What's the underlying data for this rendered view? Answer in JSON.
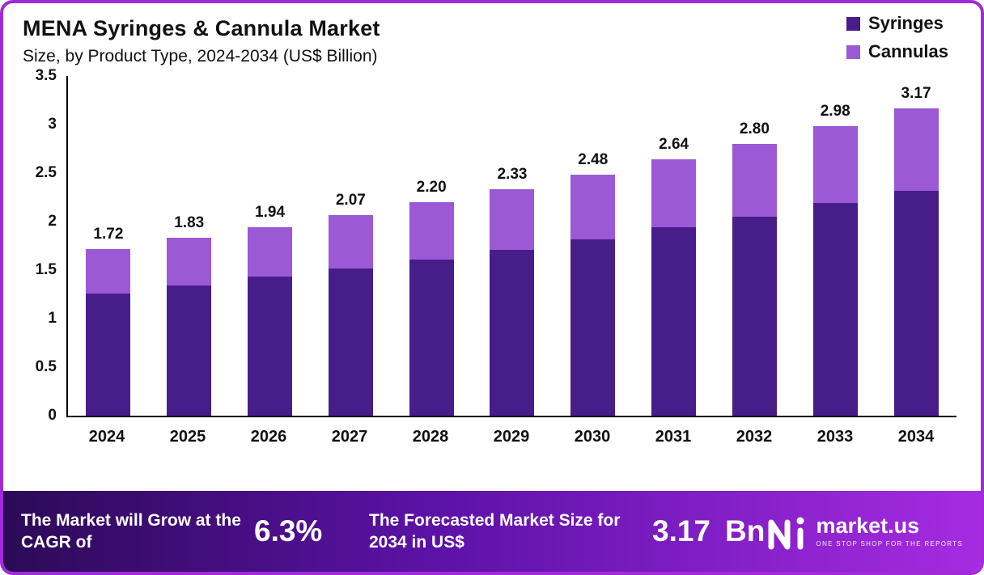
{
  "title": "MENA Syringes & Cannula Market",
  "subtitle": "Size, by Product Type, 2024-2034 (US$ Billion)",
  "legend": [
    {
      "label": "Syringes",
      "color": "#471D8A"
    },
    {
      "label": "Cannulas",
      "color": "#9B59D6"
    }
  ],
  "chart_data": {
    "type": "bar",
    "stacked": true,
    "title": "MENA Syringes & Cannula Market Size, by Product Type, 2024-2034 (US$ Billion)",
    "categories": [
      "2024",
      "2025",
      "2026",
      "2027",
      "2028",
      "2029",
      "2030",
      "2031",
      "2032",
      "2033",
      "2034"
    ],
    "series": [
      {
        "name": "Syringes",
        "color": "#471D8A",
        "values": [
          1.26,
          1.34,
          1.43,
          1.52,
          1.61,
          1.71,
          1.82,
          1.94,
          2.05,
          2.19,
          2.32
        ]
      },
      {
        "name": "Cannulas",
        "color": "#9B59D6",
        "values": [
          0.46,
          0.49,
          0.51,
          0.55,
          0.59,
          0.62,
          0.66,
          0.7,
          0.75,
          0.79,
          0.85
        ]
      }
    ],
    "totals": [
      1.72,
      1.83,
      1.94,
      2.07,
      2.2,
      2.33,
      2.48,
      2.64,
      2.8,
      2.98,
      3.17
    ],
    "total_labels": [
      "1.72",
      "1.83",
      "1.94",
      "2.07",
      "2.20",
      "2.33",
      "2.48",
      "2.64",
      "2.80",
      "2.98",
      "3.17"
    ],
    "xlabel": "",
    "ylabel": "",
    "ylim": [
      0,
      3.5
    ],
    "y_ticks": [
      "3.5",
      "3",
      "2.5",
      "2",
      "1.5",
      "1",
      "0.5",
      "0"
    ],
    "grid": false,
    "legend_position": "top-right"
  },
  "footer": {
    "cagr_label": "The Market will Grow at the CAGR of",
    "cagr_value": "6.3%",
    "forecast_label": "The Forecasted Market Size for 2034 in US$",
    "forecast_value": "3.17",
    "forecast_unit": "Bn",
    "brand": "market.us",
    "brand_tagline": "ONE STOP SHOP FOR THE REPORTS"
  },
  "colors": {
    "frame_border": "#A12BD8",
    "syringes_bar": "#471D8A",
    "cannulas_bar": "#9B59D6",
    "footer_gradient_start": "#2C0A57",
    "footer_gradient_end": "#A62BE2",
    "axis": "#000000",
    "text": "#111111"
  }
}
